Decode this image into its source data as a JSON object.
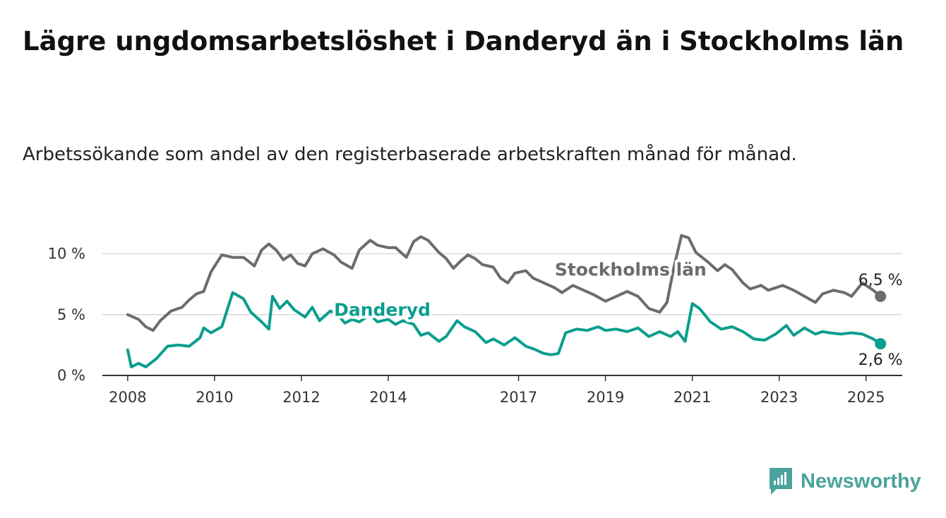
{
  "title": "Lägre ungdomsarbetslöshet i Danderyd än i Stockholms län",
  "subtitle": "Arbetssökande som andel av den registerbaserade arbetskraften månad för månad.",
  "brand": {
    "name": "Newsworthy",
    "icon": "newsworthy-logo-icon",
    "color": "#4aa39c"
  },
  "chart_data": {
    "type": "line",
    "title": "",
    "xlabel": "",
    "ylabel": "",
    "ylim": [
      0,
      12
    ],
    "xlim": [
      "2007-06",
      "2025-11"
    ],
    "y_ticks": [
      {
        "value": 0,
        "label": "0 %"
      },
      {
        "value": 5,
        "label": "5 %"
      },
      {
        "value": 10,
        "label": "10 %"
      }
    ],
    "x_ticks": [
      {
        "date": "2008-01",
        "label": "2008"
      },
      {
        "date": "2010-01",
        "label": "2010"
      },
      {
        "date": "2012-01",
        "label": "2012"
      },
      {
        "date": "2014-01",
        "label": "2014"
      },
      {
        "date": "2017-01",
        "label": "2017"
      },
      {
        "date": "2019-01",
        "label": "2019"
      },
      {
        "date": "2021-01",
        "label": "2021"
      },
      {
        "date": "2023-01",
        "label": "2023"
      },
      {
        "date": "2025-01",
        "label": "2025"
      }
    ],
    "grid": "horizontal",
    "series": [
      {
        "name": "Stockholms län",
        "color": "#6b6b70",
        "end_label": "6,5 %",
        "points": [
          [
            "2008-01",
            5.0
          ],
          [
            "2008-04",
            4.6
          ],
          [
            "2008-06",
            4.0
          ],
          [
            "2008-08",
            3.7
          ],
          [
            "2008-10",
            4.5
          ],
          [
            "2009-01",
            5.3
          ],
          [
            "2009-04",
            5.6
          ],
          [
            "2009-06",
            6.2
          ],
          [
            "2009-08",
            6.7
          ],
          [
            "2009-10",
            6.9
          ],
          [
            "2009-12",
            8.5
          ],
          [
            "2010-03",
            9.9
          ],
          [
            "2010-06",
            9.7
          ],
          [
            "2010-09",
            9.7
          ],
          [
            "2010-12",
            9.0
          ],
          [
            "2011-02",
            10.3
          ],
          [
            "2011-04",
            10.8
          ],
          [
            "2011-06",
            10.3
          ],
          [
            "2011-08",
            9.5
          ],
          [
            "2011-10",
            9.9
          ],
          [
            "2011-12",
            9.2
          ],
          [
            "2012-02",
            9.0
          ],
          [
            "2012-04",
            10.0
          ],
          [
            "2012-07",
            10.4
          ],
          [
            "2012-10",
            9.9
          ],
          [
            "2012-12",
            9.3
          ],
          [
            "2013-03",
            8.8
          ],
          [
            "2013-05",
            10.3
          ],
          [
            "2013-08",
            11.1
          ],
          [
            "2013-10",
            10.7
          ],
          [
            "2014-01",
            10.5
          ],
          [
            "2014-03",
            10.5
          ],
          [
            "2014-06",
            9.7
          ],
          [
            "2014-08",
            11.0
          ],
          [
            "2014-10",
            11.4
          ],
          [
            "2014-12",
            11.1
          ],
          [
            "2015-03",
            10.1
          ],
          [
            "2015-05",
            9.6
          ],
          [
            "2015-07",
            8.8
          ],
          [
            "2015-09",
            9.4
          ],
          [
            "2015-11",
            9.9
          ],
          [
            "2016-01",
            9.6
          ],
          [
            "2016-03",
            9.1
          ],
          [
            "2016-06",
            8.9
          ],
          [
            "2016-08",
            8.0
          ],
          [
            "2016-10",
            7.6
          ],
          [
            "2016-12",
            8.4
          ],
          [
            "2017-03",
            8.6
          ],
          [
            "2017-05",
            8.0
          ],
          [
            "2017-08",
            7.6
          ],
          [
            "2017-11",
            7.2
          ],
          [
            "2018-01",
            6.8
          ],
          [
            "2018-04",
            7.4
          ],
          [
            "2018-07",
            7.0
          ],
          [
            "2018-10",
            6.6
          ],
          [
            "2019-01",
            6.1
          ],
          [
            "2019-04",
            6.5
          ],
          [
            "2019-07",
            6.9
          ],
          [
            "2019-10",
            6.5
          ],
          [
            "2020-01",
            5.5
          ],
          [
            "2020-04",
            5.2
          ],
          [
            "2020-06",
            6.0
          ],
          [
            "2020-08",
            9.0
          ],
          [
            "2020-10",
            11.5
          ],
          [
            "2020-12",
            11.3
          ],
          [
            "2021-02",
            10.1
          ],
          [
            "2021-05",
            9.4
          ],
          [
            "2021-08",
            8.6
          ],
          [
            "2021-10",
            9.1
          ],
          [
            "2021-12",
            8.7
          ],
          [
            "2022-03",
            7.6
          ],
          [
            "2022-05",
            7.1
          ],
          [
            "2022-08",
            7.4
          ],
          [
            "2022-10",
            7.0
          ],
          [
            "2022-12",
            7.2
          ],
          [
            "2023-02",
            7.4
          ],
          [
            "2023-05",
            7.0
          ],
          [
            "2023-08",
            6.5
          ],
          [
            "2023-11",
            6.0
          ],
          [
            "2024-01",
            6.7
          ],
          [
            "2024-04",
            7.0
          ],
          [
            "2024-07",
            6.8
          ],
          [
            "2024-09",
            6.5
          ],
          [
            "2024-12",
            7.6
          ],
          [
            "2025-03",
            7.0
          ],
          [
            "2025-05",
            6.5
          ]
        ]
      },
      {
        "name": "Danderyd",
        "color": "#0a9e8e",
        "end_label": "2,6 %",
        "points": [
          [
            "2008-01",
            2.1
          ],
          [
            "2008-02",
            0.7
          ],
          [
            "2008-04",
            1.0
          ],
          [
            "2008-06",
            0.7
          ],
          [
            "2008-09",
            1.4
          ],
          [
            "2008-12",
            2.4
          ],
          [
            "2009-03",
            2.5
          ],
          [
            "2009-06",
            2.4
          ],
          [
            "2009-09",
            3.1
          ],
          [
            "2009-10",
            3.9
          ],
          [
            "2009-12",
            3.5
          ],
          [
            "2010-03",
            4.0
          ],
          [
            "2010-06",
            6.8
          ],
          [
            "2010-09",
            6.3
          ],
          [
            "2010-11",
            5.2
          ],
          [
            "2011-02",
            4.4
          ],
          [
            "2011-04",
            3.8
          ],
          [
            "2011-05",
            6.5
          ],
          [
            "2011-07",
            5.5
          ],
          [
            "2011-09",
            6.1
          ],
          [
            "2011-11",
            5.4
          ],
          [
            "2012-02",
            4.8
          ],
          [
            "2012-04",
            5.6
          ],
          [
            "2012-06",
            4.5
          ],
          [
            "2012-09",
            5.3
          ],
          [
            "2012-11",
            5.0
          ],
          [
            "2013-01",
            4.3
          ],
          [
            "2013-03",
            4.6
          ],
          [
            "2013-05",
            4.4
          ],
          [
            "2013-08",
            5.0
          ],
          [
            "2013-10",
            4.4
          ],
          [
            "2014-01",
            4.6
          ],
          [
            "2014-03",
            4.2
          ],
          [
            "2014-05",
            4.5
          ],
          [
            "2014-08",
            4.2
          ],
          [
            "2014-10",
            3.3
          ],
          [
            "2014-12",
            3.5
          ],
          [
            "2015-03",
            2.8
          ],
          [
            "2015-05",
            3.2
          ],
          [
            "2015-08",
            4.5
          ],
          [
            "2015-10",
            4.0
          ],
          [
            "2016-01",
            3.6
          ],
          [
            "2016-04",
            2.7
          ],
          [
            "2016-06",
            3.0
          ],
          [
            "2016-09",
            2.5
          ],
          [
            "2016-12",
            3.1
          ],
          [
            "2017-03",
            2.4
          ],
          [
            "2017-05",
            2.2
          ],
          [
            "2017-08",
            1.8
          ],
          [
            "2017-10",
            1.7
          ],
          [
            "2017-12",
            1.8
          ],
          [
            "2018-02",
            3.5
          ],
          [
            "2018-05",
            3.8
          ],
          [
            "2018-08",
            3.7
          ],
          [
            "2018-11",
            4.0
          ],
          [
            "2019-01",
            3.7
          ],
          [
            "2019-04",
            3.8
          ],
          [
            "2019-07",
            3.6
          ],
          [
            "2019-10",
            3.9
          ],
          [
            "2020-01",
            3.2
          ],
          [
            "2020-04",
            3.6
          ],
          [
            "2020-07",
            3.2
          ],
          [
            "2020-09",
            3.6
          ],
          [
            "2020-11",
            2.8
          ],
          [
            "2021-01",
            5.9
          ],
          [
            "2021-03",
            5.5
          ],
          [
            "2021-06",
            4.4
          ],
          [
            "2021-09",
            3.8
          ],
          [
            "2021-12",
            4.0
          ],
          [
            "2022-03",
            3.6
          ],
          [
            "2022-06",
            3.0
          ],
          [
            "2022-09",
            2.9
          ],
          [
            "2022-12",
            3.4
          ],
          [
            "2023-03",
            4.1
          ],
          [
            "2023-05",
            3.3
          ],
          [
            "2023-08",
            3.9
          ],
          [
            "2023-11",
            3.4
          ],
          [
            "2024-01",
            3.6
          ],
          [
            "2024-03",
            3.5
          ],
          [
            "2024-06",
            3.4
          ],
          [
            "2024-09",
            3.5
          ],
          [
            "2024-12",
            3.4
          ],
          [
            "2025-03",
            3.0
          ],
          [
            "2025-05",
            2.6
          ]
        ]
      }
    ]
  }
}
